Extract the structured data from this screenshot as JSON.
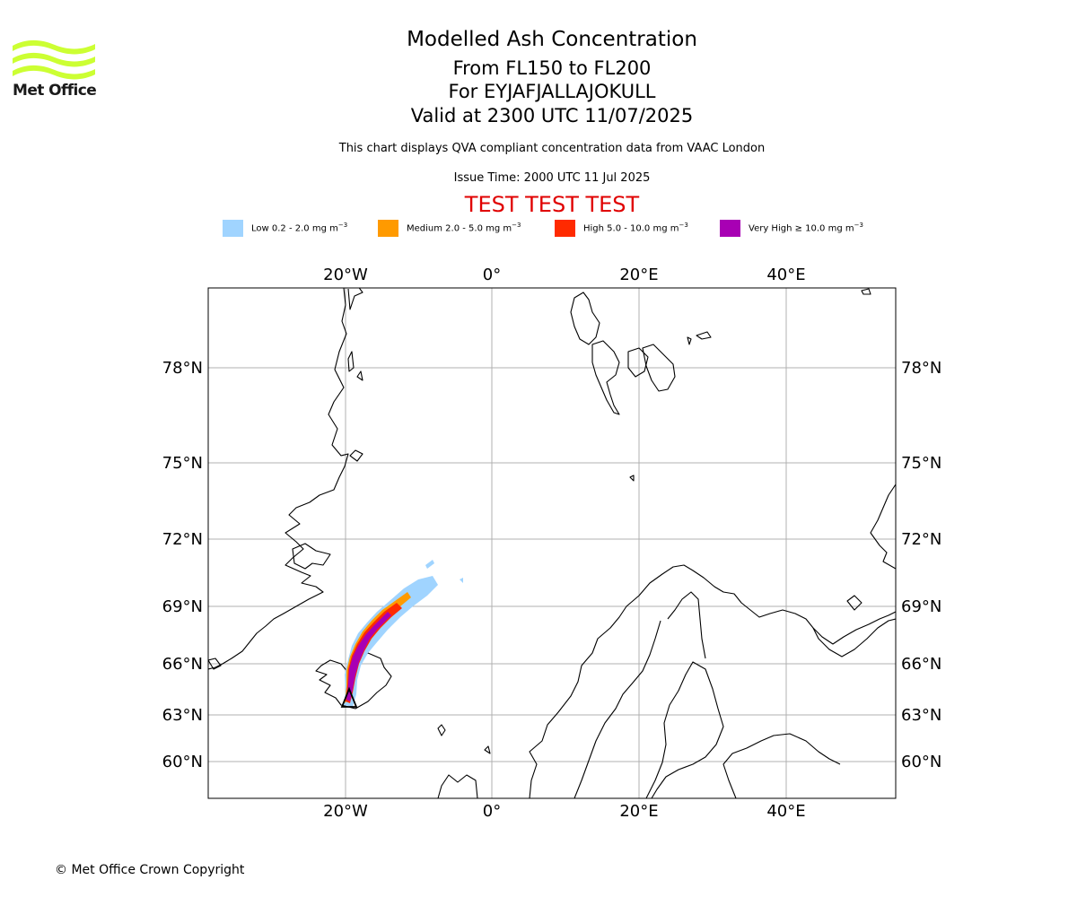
{
  "header": {
    "brand": "Met Office",
    "title": "Modelled Ash Concentration",
    "level_range": "From FL150 to FL200",
    "volcano": "For EYJAFJALLAJOKULL",
    "valid": "Valid at 2300 UTC 11/07/2025",
    "subtitle": "This chart displays QVA compliant concentration data from VAAC London",
    "issue": "Issue Time: 2000 UTC 11 Jul 2025",
    "test_banner": "TEST TEST TEST"
  },
  "legend": [
    {
      "label": "Low 0.2 - 2.0 mg m",
      "sup": "−3",
      "color": "#a0d4ff"
    },
    {
      "label": "Medium 2.0 - 5.0 mg m",
      "sup": "−3",
      "color": "#ff9a00"
    },
    {
      "label": "High 5.0 - 10.0 mg m",
      "sup": "−3",
      "color": "#ff2a00"
    },
    {
      "label": "Very High  ≥  10.0 mg m",
      "sup": "−3",
      "color": "#a800b4"
    }
  ],
  "map": {
    "lon_labels": [
      "20°W",
      "0°",
      "20°E",
      "40°E"
    ],
    "lat_labels": [
      "78°N",
      "75°N",
      "72°N",
      "69°N",
      "66°N",
      "63°N",
      "60°N"
    ],
    "volcano_marker": "triangle",
    "grid": true
  },
  "footer": {
    "copyright": "© Met Office Crown Copyright"
  },
  "colors": {
    "low": "#a0d4ff",
    "medium": "#ff9a00",
    "high": "#ff2a00",
    "very_high": "#a800b4",
    "test": "#e00000",
    "logo": "#ccff33"
  }
}
